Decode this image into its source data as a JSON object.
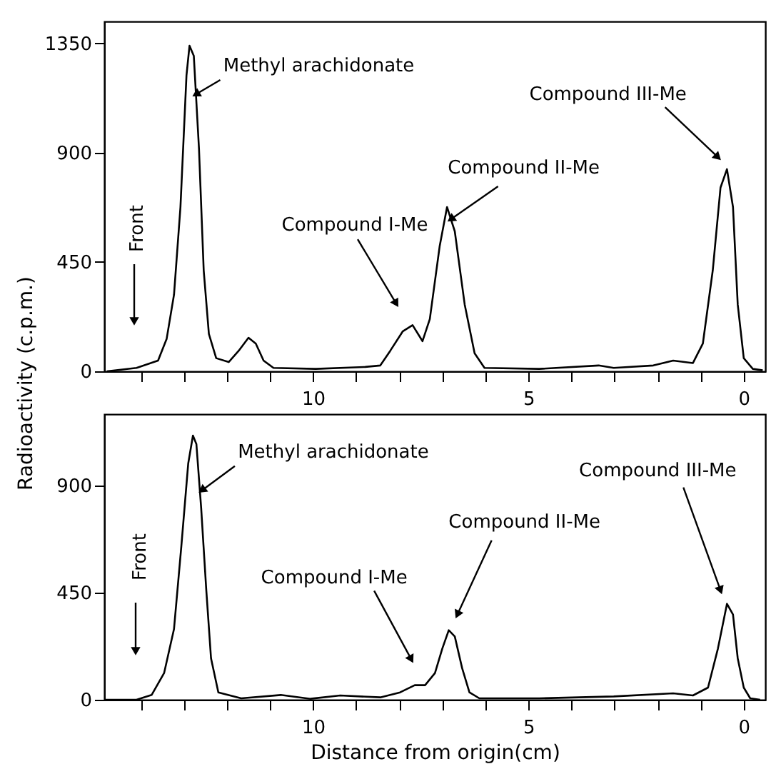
{
  "chart_data": [
    {
      "type": "line",
      "ylabel": "Radioactivity (c.p.m.)",
      "xlim": [
        14.85,
        -0.5
      ],
      "ylim": [
        0,
        1440
      ],
      "xticks": [
        {
          "value": 14,
          "label": null
        },
        {
          "value": 13,
          "label": null
        },
        {
          "value": 12,
          "label": null
        },
        {
          "value": 11,
          "label": null
        },
        10,
        {
          "value": 9,
          "label": null
        },
        {
          "value": 8,
          "label": null
        },
        {
          "value": 7,
          "label": null
        },
        {
          "value": 6,
          "label": null
        },
        5,
        {
          "value": 4,
          "label": null
        },
        {
          "value": 3,
          "label": null
        },
        {
          "value": 2,
          "label": null
        },
        {
          "value": 1,
          "label": null
        },
        0
      ],
      "yticks": [
        0,
        450,
        900,
        1350
      ],
      "x": [
        14.79,
        14.1,
        13.6,
        13.4,
        13.23,
        13.08,
        12.94,
        12.87,
        12.77,
        12.65,
        12.54,
        12.42,
        12.25,
        11.96,
        11.73,
        11.5,
        11.33,
        11.15,
        10.92,
        9.94,
        8.79,
        8.44,
        8.21,
        7.92,
        7.69,
        7.46,
        7.29,
        7.06,
        6.89,
        6.71,
        6.48,
        6.25,
        6.02,
        4.75,
        3.37,
        3.02,
        2.1,
        1.64,
        1.18,
        0.95,
        0.72,
        0.54,
        0.39,
        0.25,
        0.14,
        0,
        -0.21,
        -0.44
      ],
      "series": [
        {
          "color": "#000000",
          "values": [
            0,
            14,
            44,
            134,
            315,
            676,
            1218,
            1340,
            1298,
            917,
            415,
            154,
            54,
            38,
            84,
            138,
            114,
            44,
            14,
            10,
            18,
            24,
            84,
            164,
            190,
            124,
            215,
            516,
            676,
            576,
            275,
            74,
            14,
            10,
            24,
            14,
            24,
            44,
            34,
            114,
            415,
            756,
            832,
            676,
            275,
            54,
            10,
            4
          ]
        }
      ],
      "annotations": [
        {
          "text": "Methyl arachidonate",
          "x": 12.72,
          "y": 1140
        },
        {
          "text": "Compound I-Me",
          "x": 8.07,
          "y": 279
        },
        {
          "text": "Compound II-Me",
          "x": 6.8,
          "y": 626
        },
        {
          "text": "Compound III-Me",
          "x": 0.6,
          "y": 881
        },
        "Front"
      ],
      "grid": false,
      "legend": false,
      "marker": "none",
      "line_style": "solid"
    },
    {
      "type": "line",
      "xlabel": "Distance from origin(cm)",
      "xlim": [
        14.85,
        -0.5
      ],
      "ylim": [
        0,
        1200
      ],
      "xticks": [
        {
          "value": 14,
          "label": null
        },
        {
          "value": 13,
          "label": null
        },
        {
          "value": 12,
          "label": null
        },
        {
          "value": 11,
          "label": null
        },
        10,
        {
          "value": 9,
          "label": null
        },
        {
          "value": 8,
          "label": null
        },
        {
          "value": 7,
          "label": null
        },
        {
          "value": 6,
          "label": null
        },
        5,
        {
          "value": 4,
          "label": null
        },
        {
          "value": 3,
          "label": null
        },
        {
          "value": 2,
          "label": null
        },
        {
          "value": 1,
          "label": null
        },
        0
      ],
      "yticks": [
        0,
        450,
        900
      ],
      "x": [
        14.84,
        14.1,
        13.75,
        13.46,
        13.23,
        13.06,
        12.9,
        12.79,
        12.71,
        12.6,
        12.48,
        12.37,
        12.2,
        11.67,
        10.75,
        10.06,
        9.37,
        8.44,
        7.98,
        7.64,
        7.4,
        7.17,
        7.0,
        6.85,
        6.71,
        6.54,
        6.37,
        6.14,
        4.75,
        3.02,
        1.64,
        1.18,
        0.83,
        0.6,
        0.39,
        0.25,
        0.14,
        0,
        -0.15,
        -0.38
      ],
      "series": [
        {
          "color": "#000000",
          "values": [
            0,
            0,
            20,
            112,
            297,
            644,
            992,
            1110,
            1074,
            808,
            460,
            174,
            31,
            6,
            20,
            4,
            18,
            10,
            31,
            61,
            61,
            112,
            215,
            292,
            266,
            133,
            31,
            6,
            6,
            14,
            27,
            18,
            51,
            215,
            403,
            358,
            174,
            51,
            6,
            0
          ]
        }
      ],
      "annotations": [
        {
          "text": "Methyl arachidonate",
          "x": 12.58,
          "y": 880
        },
        {
          "text": "Compound I-Me",
          "x": 7.72,
          "y": 170
        },
        {
          "text": "Compound II-Me",
          "x": 6.65,
          "y": 358
        },
        {
          "text": "Compound III-Me",
          "x": 0.54,
          "y": 460
        },
        "Front"
      ],
      "grid": false,
      "legend": false,
      "marker": "none",
      "line_style": "solid"
    }
  ]
}
